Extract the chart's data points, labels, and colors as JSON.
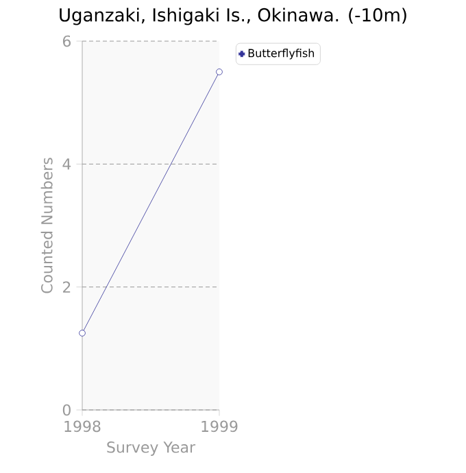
{
  "chart_data": {
    "type": "line",
    "title": "Uganzaki, Ishigaki Is., Okinawa. (-10m)",
    "xlabel": "Survey Year",
    "ylabel": "Counted Numbers",
    "x": [
      1998,
      1999
    ],
    "series": [
      {
        "name": "Butterflyfish",
        "color": "#333399",
        "values": [
          1.25,
          5.5
        ]
      }
    ],
    "xlim": [
      1998,
      1999
    ],
    "xticks": [
      1998,
      1999
    ],
    "ylim": [
      0,
      6
    ],
    "yticks": [
      0,
      2,
      4,
      6
    ],
    "grid": "y",
    "legend": "top right",
    "marker": "circle",
    "line_style": "solid"
  }
}
